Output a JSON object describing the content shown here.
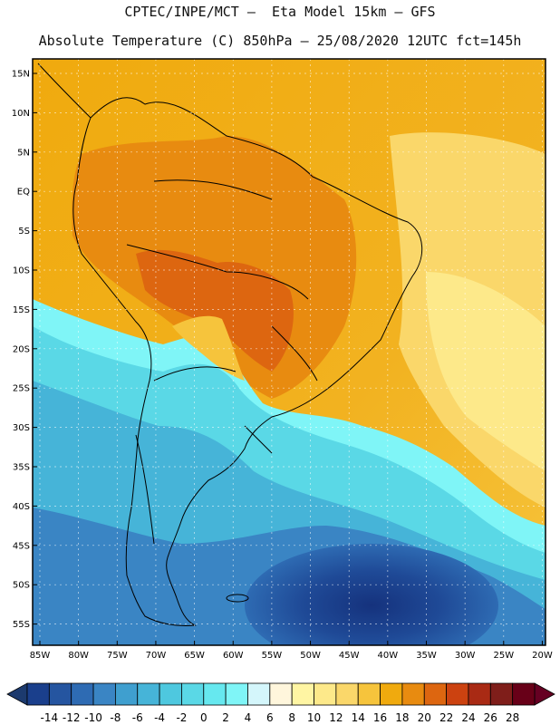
{
  "header": {
    "line1": "CPTEC/INPE/MCT –  Eta Model 15km – GFS",
    "line2": "Absolute Temperature (C) 850hPa – 25/08/2020 12UTC fct=145h"
  },
  "map": {
    "lat_labels": [
      "15N",
      "10N",
      "5N",
      "EQ",
      "5S",
      "10S",
      "15S",
      "20S",
      "25S",
      "30S",
      "35S",
      "40S",
      "45S",
      "50S",
      "55S"
    ],
    "lon_labels": [
      "85W",
      "80W",
      "75W",
      "70W",
      "65W",
      "60W",
      "55W",
      "50W",
      "45W",
      "40W",
      "35W",
      "30W",
      "25W",
      "20W"
    ]
  },
  "colorbar": {
    "labels": [
      "-14",
      "-12",
      "-10",
      "-8",
      "-6",
      "-4",
      "-2",
      "0",
      "2",
      "4",
      "6",
      "8",
      "10",
      "12",
      "14",
      "16",
      "18",
      "20",
      "22",
      "24",
      "26",
      "28"
    ],
    "colors": [
      "#1a3f8c",
      "#2555a0",
      "#2e6bb3",
      "#3a85c4",
      "#3f9fcf",
      "#46b4d8",
      "#4ec8df",
      "#5ad8e6",
      "#66e8ef",
      "#7ff5f7",
      "#d4f6fb",
      "#fff6dc",
      "#fff5a3",
      "#fde98a",
      "#fad76a",
      "#f6c43c",
      "#f0aa0e",
      "#e88b10",
      "#dd6610",
      "#cc4210",
      "#a92a14",
      "#7f1e1a",
      "#680018"
    ],
    "arrow_low": "#1c3a6e",
    "arrow_high": "#660022"
  }
}
